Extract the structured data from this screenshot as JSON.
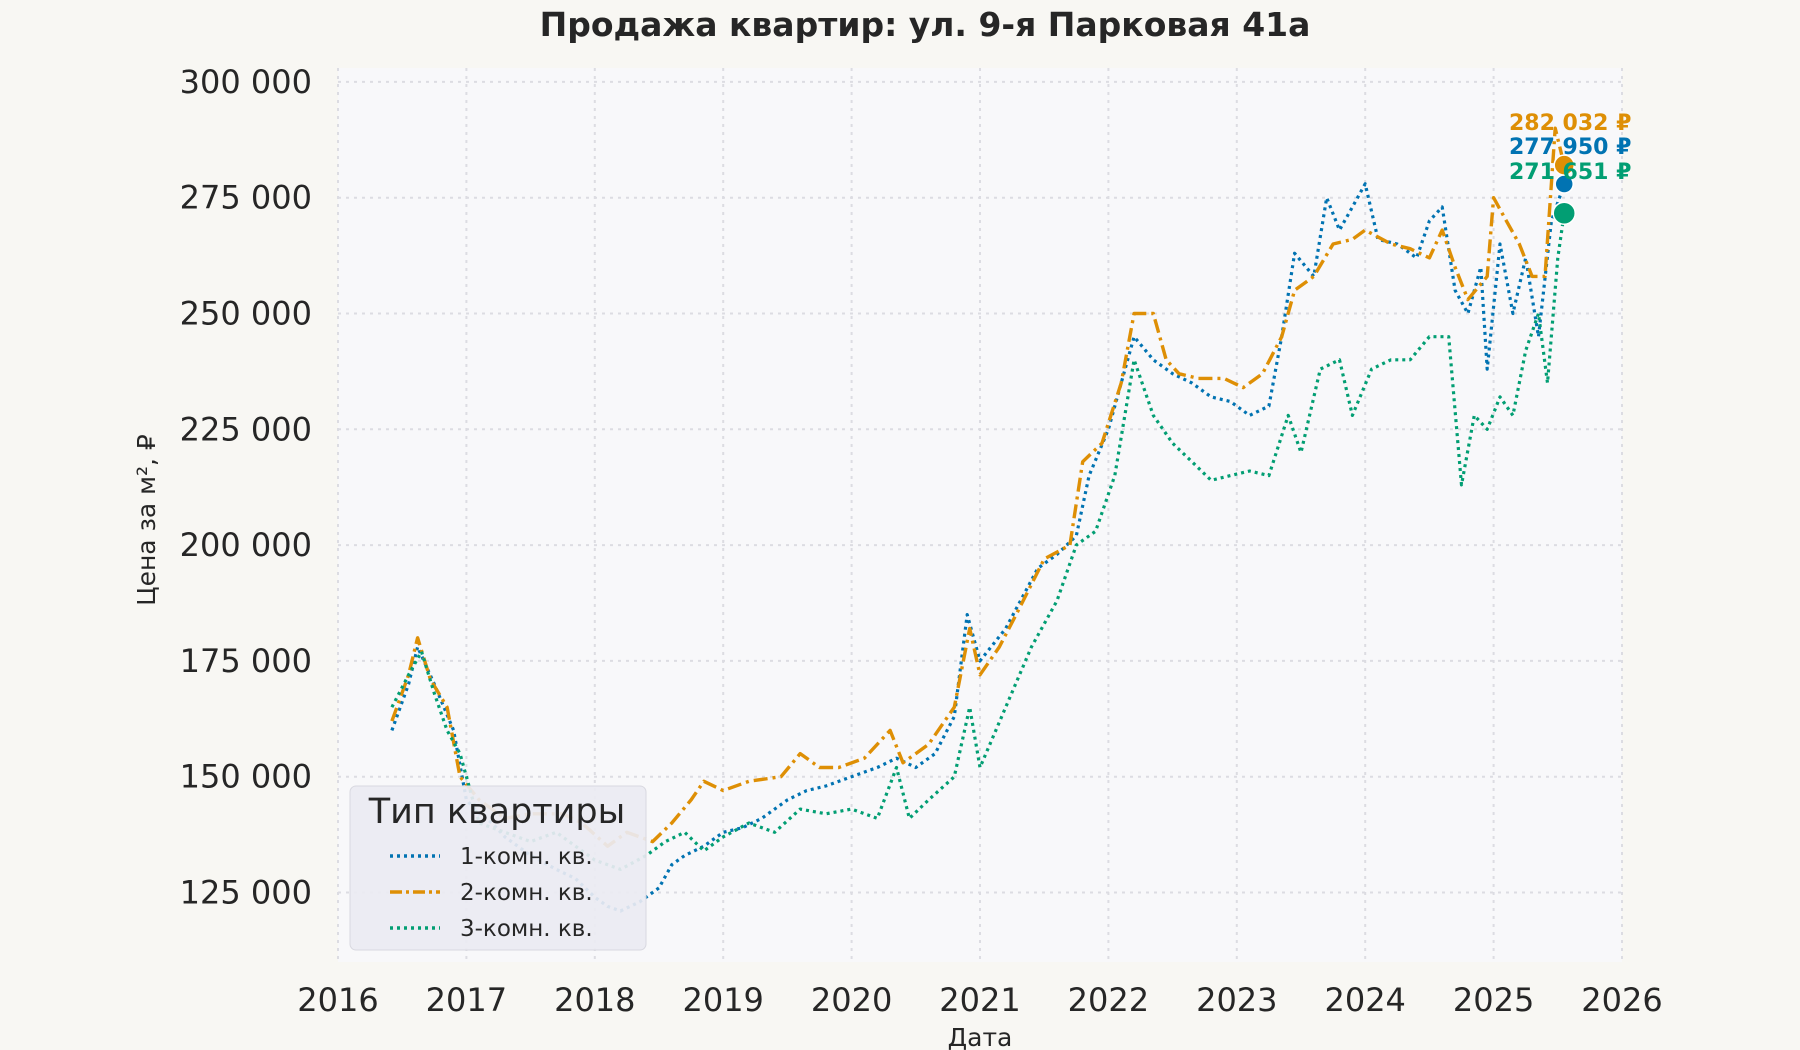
{
  "chart_data": {
    "type": "line",
    "title": "Продажа квартир: ул. 9-я Парковая 41а",
    "xlabel": "Дата",
    "ylabel": "Цена за м², ₽",
    "xlim": [
      2016,
      2026
    ],
    "ylim": [
      110000,
      303000
    ],
    "x_ticks": [
      "2016",
      "2017",
      "2018",
      "2019",
      "2020",
      "2021",
      "2022",
      "2023",
      "2024",
      "2025",
      "2026"
    ],
    "y_ticks": [
      "125 000",
      "150 000",
      "175 000",
      "200 000",
      "225 000",
      "250 000",
      "275 000",
      "300 000"
    ],
    "grid": true,
    "legend": {
      "title": "Тип квартиры",
      "position": "bottom-left"
    },
    "series": [
      {
        "name": "1-комн. кв.",
        "color": "#0173b2",
        "style": "dotted",
        "end_label": "277 950 ₽",
        "points": [
          [
            2016.42,
            160000
          ],
          [
            2016.55,
            170000
          ],
          [
            2016.62,
            178000
          ],
          [
            2016.75,
            170000
          ],
          [
            2016.9,
            160000
          ],
          [
            2017.0,
            145000
          ],
          [
            2017.1,
            142000
          ],
          [
            2017.2,
            140000
          ],
          [
            2017.3,
            137000
          ],
          [
            2017.5,
            133000
          ],
          [
            2017.7,
            130000
          ],
          [
            2017.85,
            128000
          ],
          [
            2018.0,
            124000
          ],
          [
            2018.1,
            122000
          ],
          [
            2018.2,
            121000
          ],
          [
            2018.35,
            123000
          ],
          [
            2018.5,
            126000
          ],
          [
            2018.6,
            131000
          ],
          [
            2018.7,
            133000
          ],
          [
            2018.85,
            135000
          ],
          [
            2019.0,
            138000
          ],
          [
            2019.15,
            139000
          ],
          [
            2019.3,
            141000
          ],
          [
            2019.5,
            145000
          ],
          [
            2019.65,
            147000
          ],
          [
            2019.8,
            148000
          ],
          [
            2020.0,
            150000
          ],
          [
            2020.2,
            152000
          ],
          [
            2020.35,
            154000
          ],
          [
            2020.5,
            152000
          ],
          [
            2020.65,
            155000
          ],
          [
            2020.8,
            163000
          ],
          [
            2020.9,
            185000
          ],
          [
            2021.0,
            175000
          ],
          [
            2021.2,
            182000
          ],
          [
            2021.45,
            195000
          ],
          [
            2021.6,
            198000
          ],
          [
            2021.75,
            202000
          ],
          [
            2021.85,
            215000
          ],
          [
            2022.0,
            225000
          ],
          [
            2022.1,
            235000
          ],
          [
            2022.2,
            245000
          ],
          [
            2022.35,
            240000
          ],
          [
            2022.5,
            237000
          ],
          [
            2022.65,
            235000
          ],
          [
            2022.8,
            232000
          ],
          [
            2022.95,
            231000
          ],
          [
            2023.1,
            228000
          ],
          [
            2023.25,
            230000
          ],
          [
            2023.35,
            245000
          ],
          [
            2023.45,
            263000
          ],
          [
            2023.6,
            258000
          ],
          [
            2023.7,
            275000
          ],
          [
            2023.8,
            268000
          ],
          [
            2023.9,
            273000
          ],
          [
            2024.0,
            278000
          ],
          [
            2024.1,
            266000
          ],
          [
            2024.25,
            265000
          ],
          [
            2024.4,
            262000
          ],
          [
            2024.5,
            270000
          ],
          [
            2024.6,
            273000
          ],
          [
            2024.7,
            255000
          ],
          [
            2024.8,
            250000
          ],
          [
            2024.9,
            260000
          ],
          [
            2024.95,
            238000
          ],
          [
            2025.05,
            265000
          ],
          [
            2025.15,
            250000
          ],
          [
            2025.25,
            262000
          ],
          [
            2025.35,
            245000
          ],
          [
            2025.45,
            270000
          ],
          [
            2025.55,
            277950
          ]
        ]
      },
      {
        "name": "2-комн. кв.",
        "color": "#de8f05",
        "style": "dashdot",
        "end_label": "282 032 ₽",
        "points": [
          [
            2016.42,
            162000
          ],
          [
            2016.55,
            172000
          ],
          [
            2016.62,
            180000
          ],
          [
            2016.72,
            171000
          ],
          [
            2016.85,
            165000
          ],
          [
            2016.95,
            150000
          ],
          [
            2017.1,
            145000
          ],
          [
            2017.3,
            141000
          ],
          [
            2017.5,
            142000
          ],
          [
            2017.75,
            142000
          ],
          [
            2017.9,
            140000
          ],
          [
            2018.1,
            135000
          ],
          [
            2018.25,
            138000
          ],
          [
            2018.45,
            136000
          ],
          [
            2018.6,
            140000
          ],
          [
            2018.75,
            145000
          ],
          [
            2018.85,
            149000
          ],
          [
            2019.0,
            147000
          ],
          [
            2019.2,
            149000
          ],
          [
            2019.45,
            150000
          ],
          [
            2019.6,
            155000
          ],
          [
            2019.75,
            152000
          ],
          [
            2019.9,
            152000
          ],
          [
            2020.1,
            154000
          ],
          [
            2020.3,
            160000
          ],
          [
            2020.4,
            153000
          ],
          [
            2020.6,
            157000
          ],
          [
            2020.8,
            165000
          ],
          [
            2020.92,
            182000
          ],
          [
            2021.0,
            172000
          ],
          [
            2021.15,
            178000
          ],
          [
            2021.3,
            186000
          ],
          [
            2021.5,
            197000
          ],
          [
            2021.7,
            200000
          ],
          [
            2021.8,
            218000
          ],
          [
            2021.95,
            222000
          ],
          [
            2022.1,
            235000
          ],
          [
            2022.2,
            250000
          ],
          [
            2022.35,
            250000
          ],
          [
            2022.45,
            240000
          ],
          [
            2022.55,
            237000
          ],
          [
            2022.7,
            236000
          ],
          [
            2022.9,
            236000
          ],
          [
            2023.05,
            234000
          ],
          [
            2023.2,
            237000
          ],
          [
            2023.35,
            245000
          ],
          [
            2023.45,
            255000
          ],
          [
            2023.6,
            258000
          ],
          [
            2023.75,
            265000
          ],
          [
            2023.9,
            266000
          ],
          [
            2024.0,
            268000
          ],
          [
            2024.2,
            265000
          ],
          [
            2024.35,
            264000
          ],
          [
            2024.5,
            262000
          ],
          [
            2024.6,
            268000
          ],
          [
            2024.7,
            260000
          ],
          [
            2024.8,
            253000
          ],
          [
            2024.95,
            258000
          ],
          [
            2025.0,
            275000
          ],
          [
            2025.1,
            270000
          ],
          [
            2025.2,
            265000
          ],
          [
            2025.3,
            258000
          ],
          [
            2025.4,
            258000
          ],
          [
            2025.48,
            290000
          ],
          [
            2025.55,
            282032
          ]
        ]
      },
      {
        "name": "3-комн. кв.",
        "color": "#029e73",
        "style": "dotted",
        "end_label": "271 651 ₽",
        "points": [
          [
            2016.42,
            165000
          ],
          [
            2016.55,
            172000
          ],
          [
            2016.65,
            177000
          ],
          [
            2016.75,
            168000
          ],
          [
            2016.85,
            160000
          ],
          [
            2016.95,
            155000
          ],
          [
            2017.1,
            140000
          ],
          [
            2017.3,
            138000
          ],
          [
            2017.5,
            136000
          ],
          [
            2017.7,
            138000
          ],
          [
            2017.85,
            135000
          ],
          [
            2018.0,
            132000
          ],
          [
            2018.2,
            130000
          ],
          [
            2018.4,
            133000
          ],
          [
            2018.55,
            136000
          ],
          [
            2018.7,
            138000
          ],
          [
            2018.85,
            134000
          ],
          [
            2019.0,
            137000
          ],
          [
            2019.2,
            140000
          ],
          [
            2019.4,
            138000
          ],
          [
            2019.6,
            143000
          ],
          [
            2019.8,
            142000
          ],
          [
            2020.0,
            143000
          ],
          [
            2020.2,
            141000
          ],
          [
            2020.35,
            152000
          ],
          [
            2020.45,
            141000
          ],
          [
            2020.6,
            145000
          ],
          [
            2020.8,
            150000
          ],
          [
            2020.92,
            165000
          ],
          [
            2021.0,
            152000
          ],
          [
            2021.2,
            165000
          ],
          [
            2021.4,
            178000
          ],
          [
            2021.6,
            188000
          ],
          [
            2021.75,
            200000
          ],
          [
            2021.9,
            203000
          ],
          [
            2022.05,
            215000
          ],
          [
            2022.2,
            240000
          ],
          [
            2022.35,
            228000
          ],
          [
            2022.5,
            222000
          ],
          [
            2022.65,
            218000
          ],
          [
            2022.8,
            214000
          ],
          [
            2022.95,
            215000
          ],
          [
            2023.1,
            216000
          ],
          [
            2023.25,
            215000
          ],
          [
            2023.4,
            228000
          ],
          [
            2023.5,
            220000
          ],
          [
            2023.65,
            238000
          ],
          [
            2023.8,
            240000
          ],
          [
            2023.9,
            228000
          ],
          [
            2024.05,
            238000
          ],
          [
            2024.2,
            240000
          ],
          [
            2024.35,
            240000
          ],
          [
            2024.5,
            245000
          ],
          [
            2024.65,
            245000
          ],
          [
            2024.75,
            213000
          ],
          [
            2024.85,
            228000
          ],
          [
            2024.95,
            225000
          ],
          [
            2025.05,
            232000
          ],
          [
            2025.15,
            228000
          ],
          [
            2025.25,
            242000
          ],
          [
            2025.35,
            250000
          ],
          [
            2025.42,
            235000
          ],
          [
            2025.5,
            262000
          ],
          [
            2025.55,
            271651
          ]
        ]
      }
    ]
  }
}
